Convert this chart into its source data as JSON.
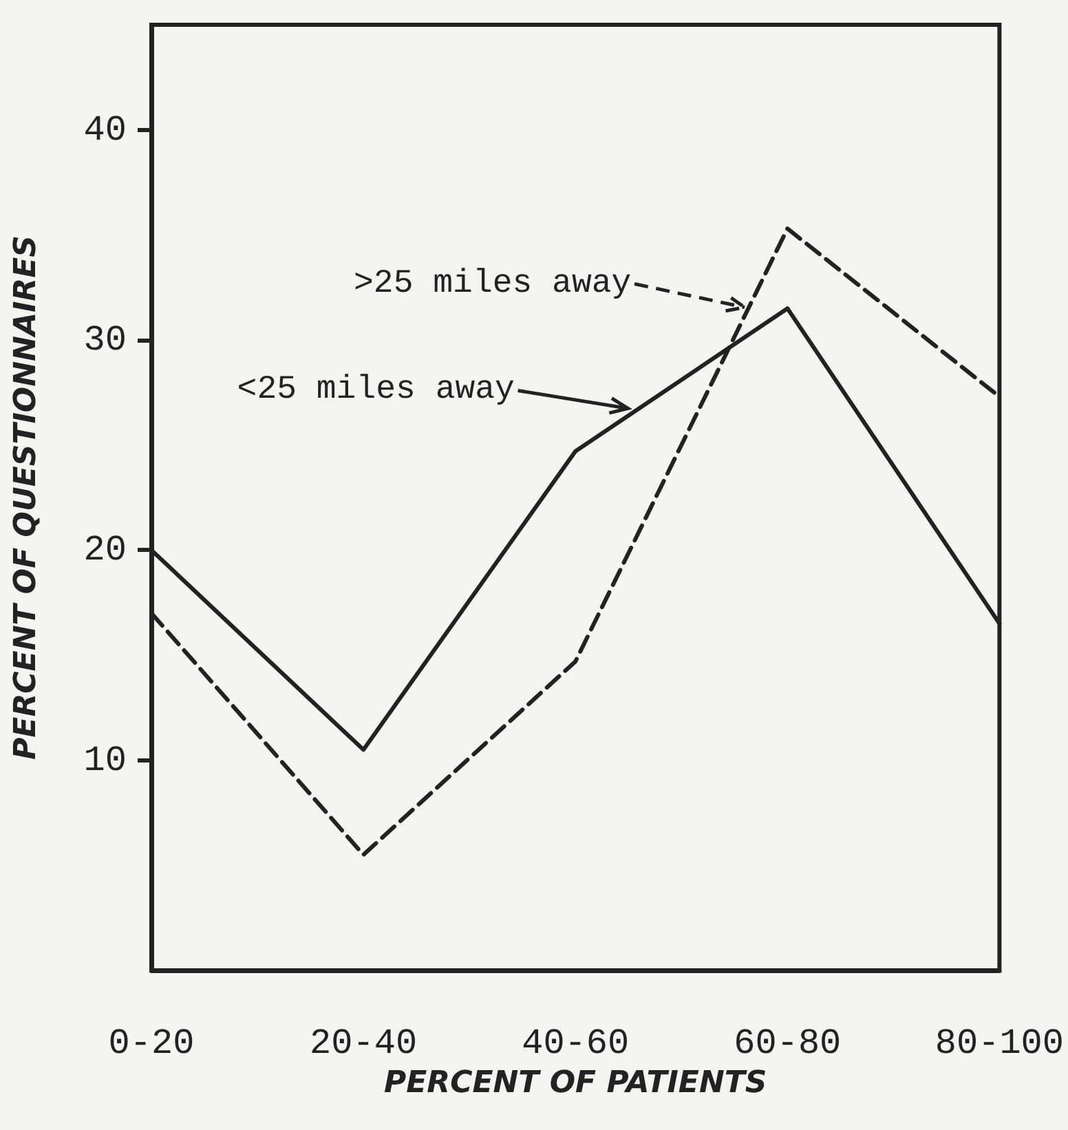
{
  "chart_data": {
    "type": "line",
    "xlabel": "PERCENT OF PATIENTS",
    "ylabel": "PERCENT OF QUESTIONNAIRES",
    "categories": [
      "0-20",
      "20-40",
      "40-60",
      "60-80",
      "80-100"
    ],
    "ylim": [
      0,
      45
    ],
    "yticks": [
      10,
      20,
      30,
      40
    ],
    "marker": "none",
    "legend": "top left",
    "series": [
      {
        "name": "<25 miles away",
        "color": "#222222",
        "line_style": "solid",
        "values": [
          20,
          10.5,
          24.7,
          31.5,
          16.5
        ]
      },
      {
        "name": ">25 miles away",
        "color": "#222222",
        "line_style": "dashed",
        "values": [
          17,
          5.5,
          14.7,
          35.3,
          27.3
        ]
      }
    ]
  }
}
